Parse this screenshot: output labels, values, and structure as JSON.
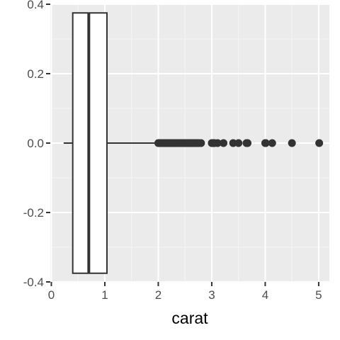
{
  "chart_data": {
    "type": "boxplot",
    "orientation": "horizontal",
    "title": "",
    "xlabel": "carat",
    "ylabel": "",
    "xlim": [
      -0.02,
      5.2
    ],
    "ylim": [
      -0.4,
      0.4
    ],
    "x_ticks": [
      0,
      1,
      2,
      3,
      4,
      5
    ],
    "x_tick_labels": [
      "0",
      "1",
      "2",
      "3",
      "4",
      "5"
    ],
    "y_ticks": [
      -0.4,
      -0.2,
      0.0,
      0.2,
      0.4
    ],
    "y_tick_labels": [
      "-0.4",
      "-0.2",
      "0.0",
      "0.2",
      "0.4"
    ],
    "grid": true,
    "background_color": "#EBEBEB",
    "grid_major_color": "#FFFFFF",
    "grid_minor_color": "#F5F5F5",
    "box_fill_color": "#FFFFFF",
    "box_line_color": "#333333",
    "outlier_color": "#333333",
    "box": {
      "y_center": 0.0,
      "y_min": -0.375,
      "y_max": 0.375,
      "whisker_low": 0.23,
      "q1": 0.4,
      "median": 0.7,
      "q3": 1.04,
      "whisker_high": 2.0
    },
    "outliers": [
      2.0,
      2.02,
      2.04,
      2.06,
      2.08,
      2.1,
      2.12,
      2.14,
      2.16,
      2.18,
      2.2,
      2.22,
      2.24,
      2.26,
      2.28,
      2.3,
      2.32,
      2.34,
      2.36,
      2.38,
      2.4,
      2.42,
      2.44,
      2.46,
      2.48,
      2.5,
      2.52,
      2.54,
      2.56,
      2.58,
      2.6,
      2.62,
      2.64,
      2.66,
      2.68,
      2.7,
      2.72,
      2.74,
      2.76,
      2.8,
      3.0,
      3.01,
      3.02,
      3.04,
      3.05,
      3.11,
      3.22,
      3.4,
      3.5,
      3.65,
      3.67,
      4.0,
      4.01,
      4.13,
      4.5,
      5.01
    ]
  }
}
